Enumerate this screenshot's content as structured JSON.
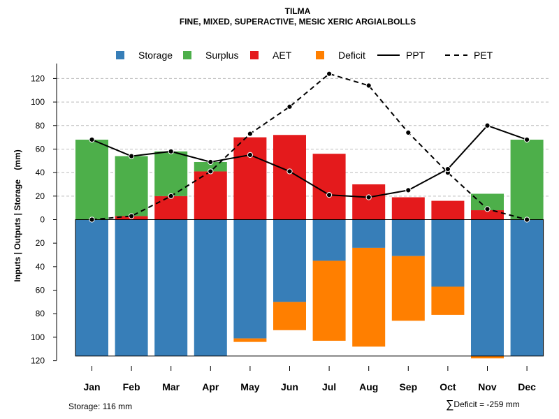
{
  "title": "TILMA",
  "subtitle": "FINE, MIXED, SUPERACTIVE, MESIC XERIC ARGIALBOLLS",
  "storage_note": "Storage: 116 mm",
  "deficit_symbol": "∑",
  "deficit_note": "Deficit = -259 mm",
  "colors": {
    "storage": "#377eb8",
    "surplus": "#4daf4a",
    "aet": "#e41a1c",
    "deficit": "#ff7f00",
    "line": "#000000",
    "grid": "#bbbbbb"
  },
  "chart_data": {
    "type": "bar",
    "title": "TILMA",
    "subtitle": "FINE, MIXED, SUPERACTIVE, MESIC XERIC ARGIALBOLLS",
    "ylabel": "Inputs | Outputs | Storage    (mm)",
    "xlabel": "",
    "ylim": [
      -120,
      130
    ],
    "yticks": [
      120,
      100,
      80,
      60,
      40,
      20,
      0,
      20,
      40,
      60,
      80,
      100,
      120
    ],
    "ytick_values": [
      120,
      100,
      80,
      60,
      40,
      20,
      0,
      -20,
      -40,
      -60,
      -80,
      -100,
      -120
    ],
    "grid": true,
    "legend_position": "top",
    "categories": [
      "Jan",
      "Feb",
      "Mar",
      "Apr",
      "May",
      "Jun",
      "Jul",
      "Aug",
      "Sep",
      "Oct",
      "Nov",
      "Dec"
    ],
    "legend": [
      {
        "label": "Storage",
        "kind": "box",
        "color": "#377eb8"
      },
      {
        "label": "Surplus",
        "kind": "box",
        "color": "#4daf4a"
      },
      {
        "label": "AET",
        "kind": "box",
        "color": "#e41a1c"
      },
      {
        "label": "Deficit",
        "kind": "box",
        "color": "#ff7f00"
      },
      {
        "label": "PPT",
        "kind": "solid"
      },
      {
        "label": "PET",
        "kind": "dashed"
      }
    ],
    "series": [
      {
        "name": "AET",
        "values": [
          0,
          3,
          20,
          41,
          70,
          72,
          56,
          30,
          19,
          16,
          8,
          0
        ]
      },
      {
        "name": "Surplus",
        "values": [
          68,
          51,
          38,
          8,
          0,
          0,
          0,
          0,
          0,
          0,
          14,
          68
        ]
      },
      {
        "name": "Storage",
        "values": [
          116,
          116,
          116,
          116,
          101,
          70,
          35,
          24,
          31,
          57,
          116,
          116
        ]
      },
      {
        "name": "Deficit",
        "values": [
          0,
          0,
          0,
          0,
          3,
          24,
          68,
          84,
          55,
          24,
          2,
          0
        ]
      },
      {
        "name": "PPT",
        "values": [
          68,
          54,
          58,
          49,
          55,
          41,
          21,
          19,
          25,
          43,
          80,
          68
        ]
      },
      {
        "name": "PET",
        "values": [
          0,
          3,
          20,
          41,
          73,
          96,
          124,
          114,
          74,
          40,
          9,
          0
        ]
      }
    ],
    "storage_capacity": 116
  }
}
